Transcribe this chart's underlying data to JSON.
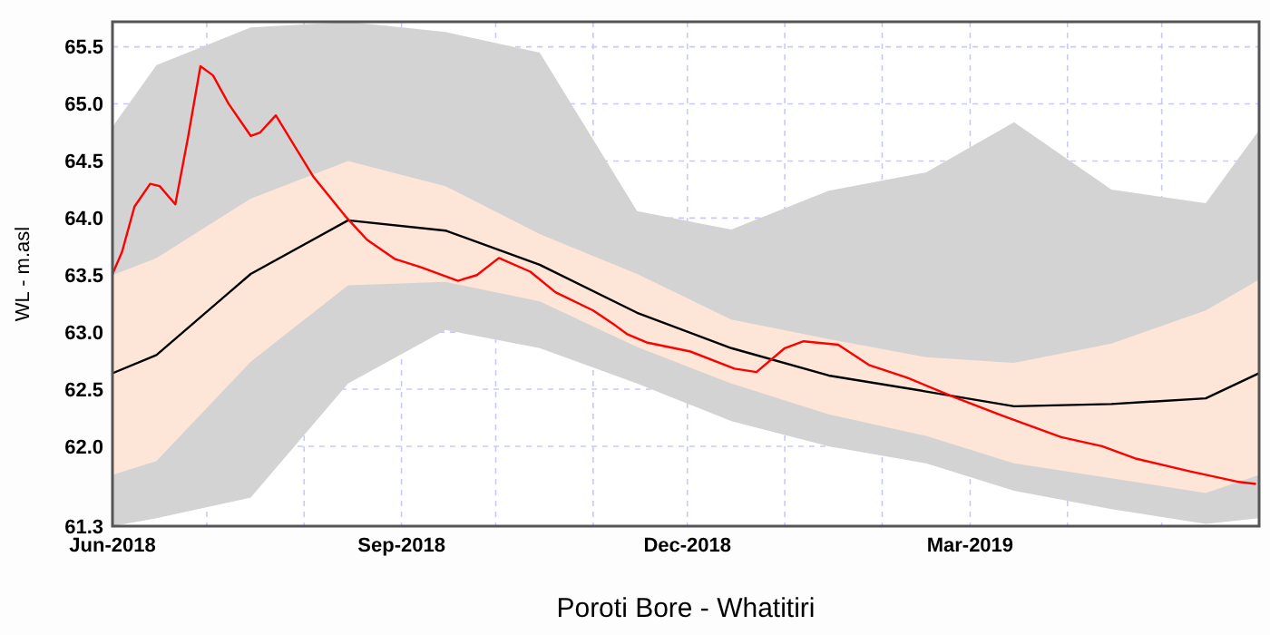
{
  "chart_data": {
    "type": "line",
    "title": "Poroti Bore - Whatitiri",
    "ylabel": "WL - m.asl",
    "xlim": [
      "2018-06-01",
      "2019-06-01"
    ],
    "xticks": [
      {
        "value": "2018-06-01",
        "label": "Jun-2018"
      },
      {
        "value": "2018-07-01",
        "label": null
      },
      {
        "value": "2018-08-01",
        "label": null
      },
      {
        "value": "2018-09-01",
        "label": "Sep-2018"
      },
      {
        "value": "2018-10-01",
        "label": null
      },
      {
        "value": "2018-11-01",
        "label": null
      },
      {
        "value": "2018-12-01",
        "label": "Dec-2018"
      },
      {
        "value": "2019-01-01",
        "label": null
      },
      {
        "value": "2019-02-01",
        "label": null
      },
      {
        "value": "2019-03-01",
        "label": "Mar-2019"
      },
      {
        "value": "2019-04-01",
        "label": null
      },
      {
        "value": "2019-05-01",
        "label": null
      }
    ],
    "ylim": [
      61.3,
      65.72
    ],
    "yticks": [
      61.3,
      {
        "value": 62,
        "label": "62.0"
      },
      62.5,
      {
        "value": 63,
        "label": "63.0"
      },
      63.5,
      {
        "value": 64,
        "label": "64.0"
      },
      64.5,
      {
        "value": 65,
        "label": "65.0"
      },
      65.5
    ],
    "grid": true,
    "series": [
      {
        "color": "#d3d3d3",
        "x": [
          "2018-06-01",
          "2018-06-15",
          "2018-07-15",
          "2018-08-15",
          "2018-09-15",
          "2018-10-15",
          "2018-11-15",
          "2018-12-15",
          "2019-01-15",
          "2019-02-15",
          "2019-03-15",
          "2019-04-15",
          "2019-05-15",
          "2019-06-01"
        ],
        "values": [
          null,
          null,
          null,
          null,
          null,
          null,
          null,
          null,
          null,
          null,
          null,
          null,
          null,
          null
        ],
        "lower": [
          61.3,
          61.37,
          61.55,
          62.55,
          63.02,
          62.86,
          62.55,
          62.22,
          62.0,
          61.85,
          61.61,
          61.45,
          61.32,
          61.37
        ],
        "upper": [
          64.8,
          65.34,
          65.67,
          65.72,
          65.63,
          65.45,
          64.06,
          63.9,
          64.24,
          64.4,
          64.84,
          64.25,
          64.13,
          64.77
        ]
      },
      {
        "color": "#fde5d8",
        "x": [
          "2018-06-01",
          "2018-06-15",
          "2018-07-15",
          "2018-08-15",
          "2018-09-15",
          "2018-10-15",
          "2018-11-15",
          "2018-12-15",
          "2019-01-15",
          "2019-02-15",
          "2019-03-15",
          "2019-04-15",
          "2019-05-15",
          "2019-06-01"
        ],
        "values": [
          null,
          null,
          null,
          null,
          null,
          null,
          null,
          null,
          null,
          null,
          null,
          null,
          null,
          null
        ],
        "lower": [
          61.75,
          61.87,
          62.74,
          63.41,
          63.44,
          63.27,
          62.87,
          62.55,
          62.28,
          62.09,
          61.85,
          61.72,
          61.59,
          61.75
        ],
        "upper": [
          63.5,
          63.65,
          64.17,
          64.5,
          64.28,
          63.86,
          63.51,
          63.11,
          62.94,
          62.78,
          62.73,
          62.9,
          63.19,
          63.46
        ]
      },
      {
        "color": "#000000",
        "x": [
          "2018-06-01",
          "2018-06-15",
          "2018-07-15",
          "2018-08-15",
          "2018-09-15",
          "2018-10-15",
          "2018-11-15",
          "2018-12-15",
          "2019-01-15",
          "2019-02-15",
          "2019-03-15",
          "2019-04-15",
          "2019-05-15",
          "2019-06-01"
        ],
        "values": [
          62.64,
          62.8,
          63.51,
          63.98,
          63.89,
          63.59,
          63.17,
          62.86,
          62.62,
          62.48,
          62.35,
          62.37,
          62.42,
          62.64
        ]
      },
      {
        "color": "#ff0000",
        "x": [
          "2018-06-01",
          "2018-06-04",
          "2018-06-08",
          "2018-06-13",
          "2018-06-16",
          "2018-06-21",
          "2018-06-25",
          "2018-06-29",
          "2018-07-03",
          "2018-07-08",
          "2018-07-15",
          "2018-07-18",
          "2018-07-23",
          "2018-07-27",
          "2018-08-04",
          "2018-08-14",
          "2018-08-21",
          "2018-08-30",
          "2018-09-07",
          "2018-09-19",
          "2018-09-25",
          "2018-10-02",
          "2018-10-12",
          "2018-10-20",
          "2018-11-01",
          "2018-11-08",
          "2018-11-12",
          "2018-11-18",
          "2018-12-02",
          "2018-12-16",
          "2018-12-23",
          "2019-01-01",
          "2019-01-07",
          "2019-01-18",
          "2019-01-28",
          "2019-02-09",
          "2019-02-24",
          "2019-03-11",
          "2019-03-30",
          "2019-04-12",
          "2019-04-23",
          "2019-05-10",
          "2019-05-25",
          "2019-05-31"
        ],
        "values": [
          63.51,
          63.7,
          64.1,
          64.3,
          64.28,
          64.12,
          64.7,
          65.33,
          65.25,
          65.0,
          64.72,
          64.75,
          64.9,
          64.72,
          64.36,
          64.02,
          63.81,
          63.64,
          63.57,
          63.45,
          63.5,
          63.65,
          63.53,
          63.35,
          63.19,
          63.06,
          62.98,
          62.91,
          62.83,
          62.68,
          62.65,
          62.86,
          62.92,
          62.89,
          62.71,
          62.6,
          62.43,
          62.27,
          62.08,
          62.0,
          61.89,
          61.78,
          61.69,
          61.67
        ]
      }
    ]
  }
}
